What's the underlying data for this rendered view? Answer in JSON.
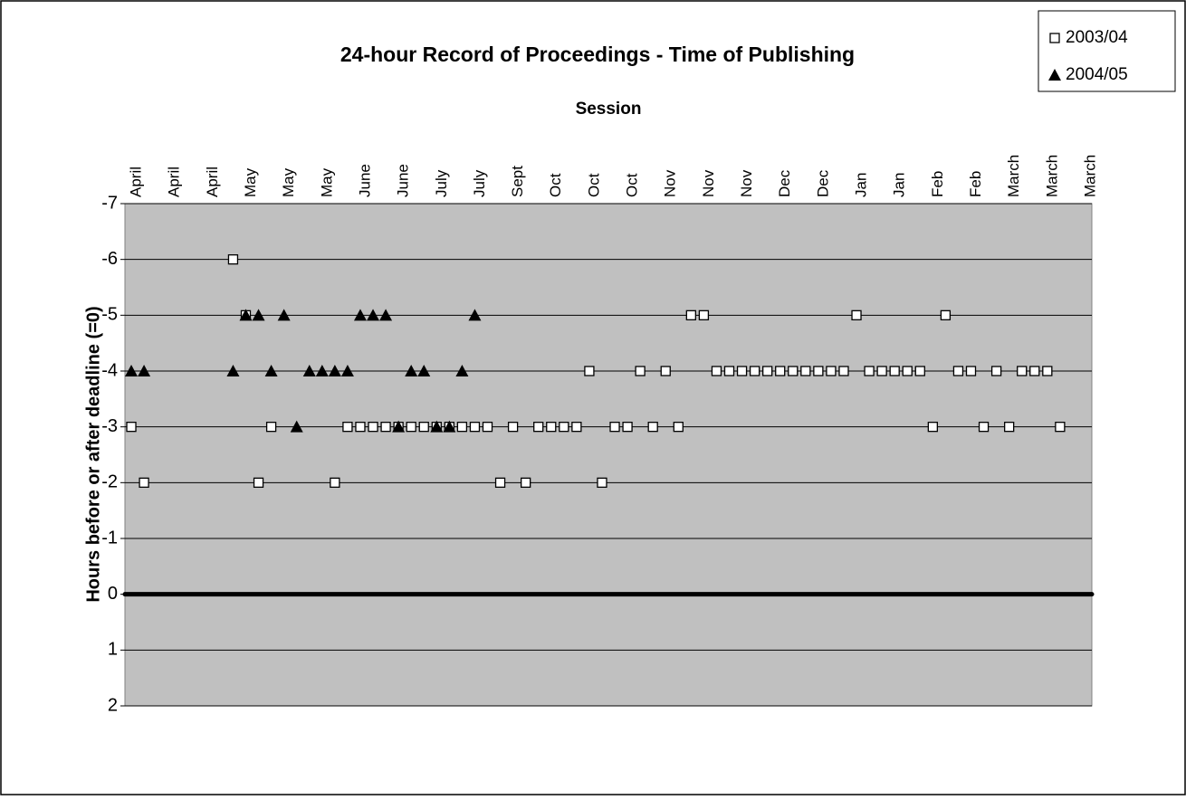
{
  "chart_data": {
    "type": "scatter",
    "title": "24-hour Record of Proceedings - Time of Publishing",
    "x_label": "Session",
    "y_label": "Hours before or after deadline (=0)",
    "categories": [
      "April",
      null,
      null,
      "April",
      null,
      null,
      "April",
      null,
      null,
      "May",
      null,
      null,
      "May",
      null,
      null,
      "May",
      null,
      null,
      "June",
      null,
      null,
      "June",
      null,
      null,
      "July",
      null,
      null,
      "July",
      null,
      null,
      "Sept",
      null,
      null,
      "Oct",
      null,
      null,
      "Oct",
      null,
      null,
      "Oct",
      null,
      null,
      "Nov",
      null,
      null,
      "Nov",
      null,
      null,
      "Nov",
      null,
      null,
      "Dec",
      null,
      null,
      "Dec",
      null,
      null,
      "Jan",
      null,
      null,
      "Jan",
      null,
      null,
      "Feb",
      null,
      null,
      "Feb",
      null,
      null,
      "March",
      null,
      null,
      "March",
      null,
      null,
      "March"
    ],
    "series": [
      {
        "name": "2003/04",
        "color": "#000000",
        "marker": "square",
        "values": [
          -3,
          -2,
          null,
          null,
          null,
          null,
          null,
          null,
          -6,
          -5,
          -2,
          -3,
          null,
          null,
          null,
          null,
          -2,
          -3,
          -3,
          -3,
          -3,
          -3,
          -3,
          -3,
          -3,
          -3,
          -3,
          -3,
          -3,
          -2,
          -3,
          -2,
          -3,
          -3,
          -3,
          -3,
          -4,
          -2,
          -3,
          -3,
          -4,
          -3,
          -4,
          -3,
          -5,
          -5,
          -4,
          -4,
          -4,
          -4,
          -4,
          -4,
          -4,
          -4,
          -4,
          -4,
          -4,
          -5,
          -4,
          -4,
          -4,
          -4,
          -4,
          -3,
          -5,
          -4,
          -4,
          -3,
          -4,
          -3,
          -4,
          -4,
          -4,
          -3,
          null,
          null
        ]
      },
      {
        "name": "2004/05",
        "color": "#000000",
        "marker": "triangle",
        "values": [
          -4,
          -4,
          null,
          null,
          null,
          null,
          null,
          null,
          -4,
          -5,
          -5,
          -4,
          -5,
          -3,
          -4,
          -4,
          -4,
          -4,
          -5,
          -5,
          -5,
          -3,
          -4,
          -4,
          -3,
          -3,
          -4,
          -5,
          null,
          null,
          null,
          null,
          null,
          null,
          null,
          null,
          null,
          null,
          null,
          null,
          null,
          null,
          null,
          null,
          null,
          null,
          null,
          null,
          null,
          null,
          null,
          null,
          null,
          null,
          null,
          null,
          null,
          null,
          null,
          null,
          null,
          null,
          null,
          null,
          null,
          null,
          null,
          null,
          null,
          null,
          null,
          null,
          null,
          null,
          null,
          null
        ]
      }
    ],
    "ylim": [
      -7,
      2
    ],
    "y_inverted": true,
    "yticks": [
      -7,
      -6,
      -5,
      -4,
      -3,
      -2,
      -1,
      0,
      1,
      2
    ],
    "grid": true,
    "zero_line": true,
    "legend": "top-right",
    "plot_background": "#c0c0c0"
  }
}
